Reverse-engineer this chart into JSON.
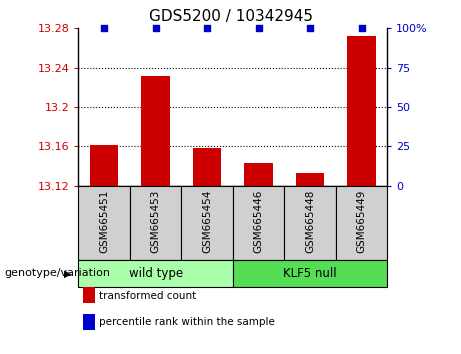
{
  "title": "GDS5200 / 10342945",
  "samples": [
    "GSM665451",
    "GSM665453",
    "GSM665454",
    "GSM665446",
    "GSM665448",
    "GSM665449"
  ],
  "bar_values": [
    13.161,
    13.232,
    13.158,
    13.143,
    13.133,
    13.272
  ],
  "percentile_values": [
    100,
    100,
    100,
    100,
    100,
    100
  ],
  "bar_color": "#cc0000",
  "percentile_color": "#0000cc",
  "ylim_left": [
    13.12,
    13.28
  ],
  "ylim_right": [
    0,
    100
  ],
  "yticks_left": [
    13.12,
    13.16,
    13.2,
    13.24,
    13.28
  ],
  "ytick_labels_left": [
    "13.12",
    "13.16",
    "13.2",
    "13.24",
    "13.28"
  ],
  "yticks_right": [
    0,
    25,
    50,
    75,
    100
  ],
  "ytick_labels_right": [
    "0",
    "25",
    "50",
    "75",
    "100%"
  ],
  "groups": [
    {
      "label": "wild type",
      "indices": [
        0,
        1,
        2
      ],
      "color": "#aaffaa"
    },
    {
      "label": "KLF5 null",
      "indices": [
        3,
        4,
        5
      ],
      "color": "#55dd55"
    }
  ],
  "group_label": "genotype/variation",
  "legend_items": [
    {
      "label": "transformed count",
      "color": "#cc0000"
    },
    {
      "label": "percentile rank within the sample",
      "color": "#0000cc"
    }
  ],
  "sample_bg_color": "#d0d0d0",
  "title_fontsize": 11,
  "tick_fontsize": 8,
  "label_fontsize": 8.5
}
